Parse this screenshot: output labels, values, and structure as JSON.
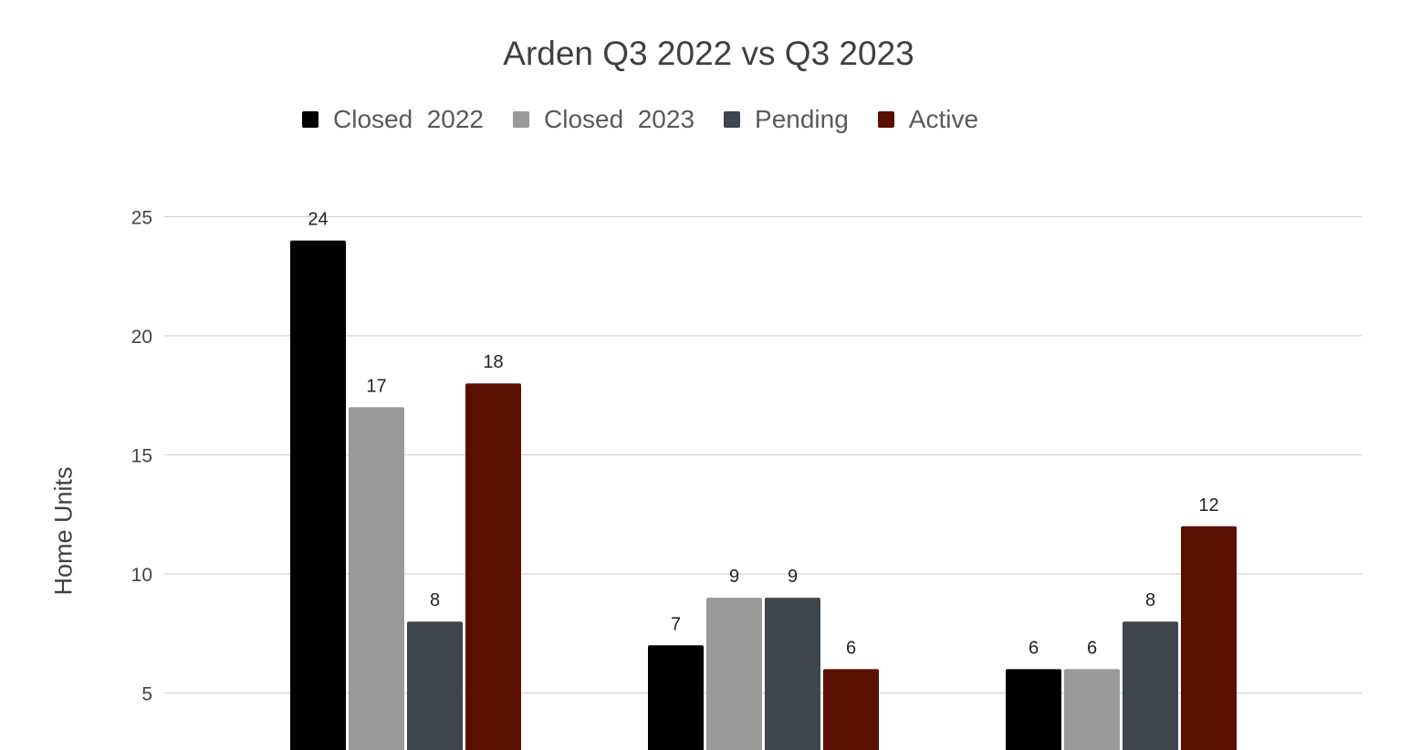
{
  "chart_data": {
    "type": "bar",
    "title": "Arden Q3 2022 vs Q3 2023",
    "xlabel": "",
    "ylabel": "Home Units",
    "categories": [
      "",
      "",
      ""
    ],
    "series": [
      {
        "name": "Closed  2022",
        "color": "#000000",
        "values": [
          24,
          7,
          6
        ]
      },
      {
        "name": "Closed  2023",
        "color": "#999999",
        "values": [
          17,
          9,
          6
        ]
      },
      {
        "name": "Pending",
        "color": "#3e454d",
        "values": [
          8,
          9,
          8
        ]
      },
      {
        "name": "Active",
        "color": "#5b0f00",
        "values": [
          18,
          6,
          12
        ]
      }
    ],
    "yticks": [
      5,
      10,
      15,
      20,
      25
    ],
    "ylim": [
      0,
      25
    ],
    "grid": true,
    "legend_position": "top"
  }
}
